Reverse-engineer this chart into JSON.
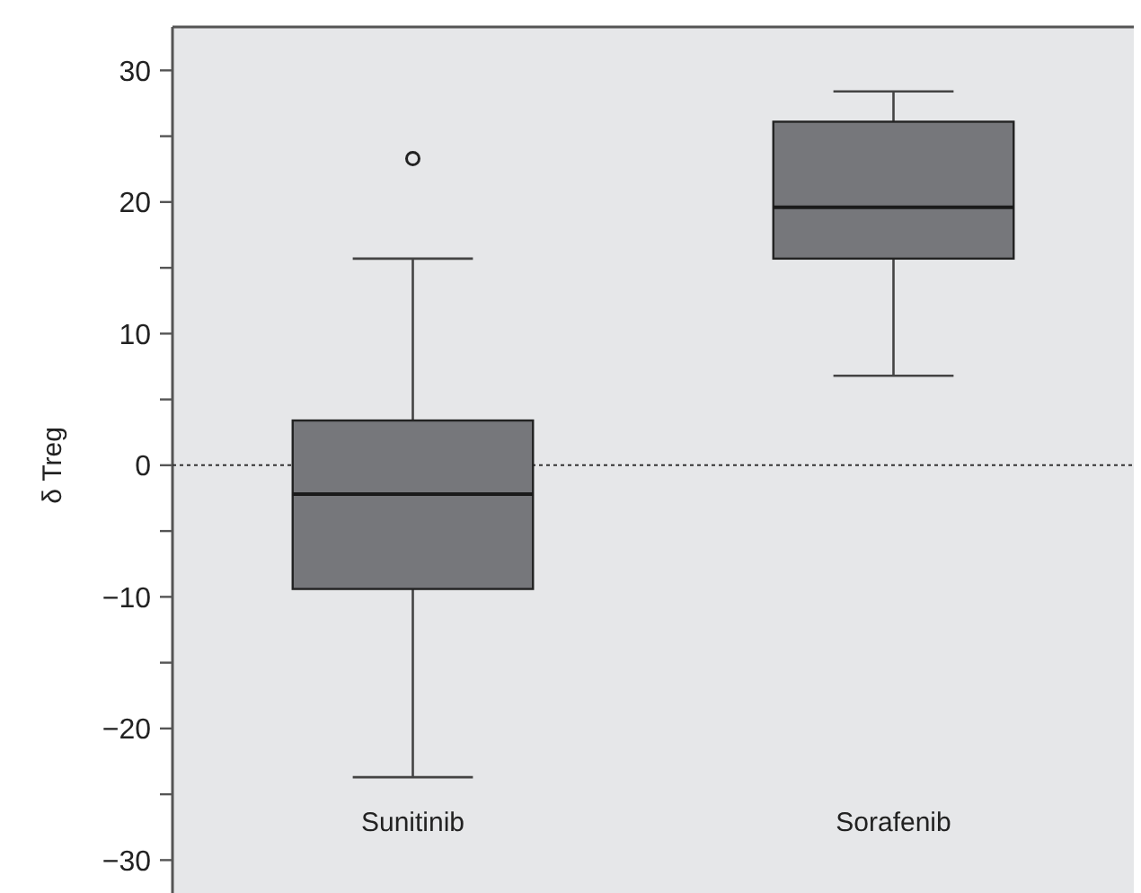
{
  "chart_data": {
    "type": "box",
    "ylabel": "δ Treg",
    "categories": [
      "Sunitinib",
      "Sorafenib"
    ],
    "boxes": [
      {
        "low": -23.7,
        "q1": -9.4,
        "median": -2.2,
        "q3": 3.4,
        "high": 15.7,
        "outliers": [
          23.3
        ]
      },
      {
        "low": 6.8,
        "q1": 15.7,
        "median": 19.6,
        "q3": 26.1,
        "high": 28.4
      }
    ],
    "color": "#76777b",
    "ylim": [
      -32.5,
      33.3
    ],
    "yticks": [
      -30,
      {
        "value": -25,
        "label": null
      },
      -20,
      {
        "value": -15,
        "label": null
      },
      -10,
      {
        "value": -5,
        "label": null
      },
      0,
      {
        "value": 5,
        "label": null
      },
      10,
      {
        "value": 15,
        "label": null
      },
      20,
      {
        "value": 25,
        "label": null
      },
      30
    ],
    "ref_lines": [
      {
        "axis": "y",
        "value": 0,
        "line_style": "dotted",
        "color": "#333333"
      }
    ],
    "grid": false
  }
}
